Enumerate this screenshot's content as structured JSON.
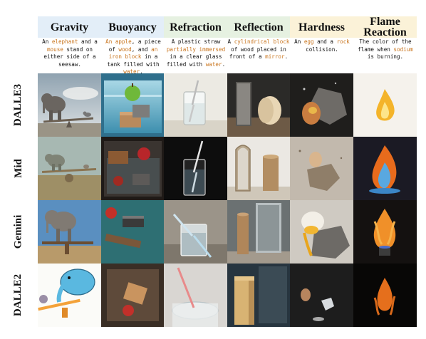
{
  "columns": [
    {
      "title": "Gravity",
      "bg": "#e3eef8",
      "caption": [
        [
          "An ",
          ""
        ],
        [
          "elephant",
          "h"
        ],
        [
          " and a ",
          ""
        ],
        [
          "mouse",
          "h"
        ],
        [
          " stand on either side of a seesaw.",
          ""
        ]
      ]
    },
    {
      "title": "Buoyancy",
      "bg": "#e3eef8",
      "caption": [
        [
          "An apple",
          "h"
        ],
        [
          ", a piece of ",
          ""
        ],
        [
          "wood",
          "h"
        ],
        [
          ", and ",
          ""
        ],
        [
          "an iron block",
          "h"
        ],
        [
          " in a tank filled with ",
          ""
        ],
        [
          "water",
          "h"
        ],
        [
          ".",
          ""
        ]
      ]
    },
    {
      "title": "Refraction",
      "bg": "#e6f1e1",
      "caption": [
        [
          "A plastic straw ",
          ""
        ],
        [
          "partially immersed",
          "h"
        ],
        [
          " in a clear glass filled with ",
          ""
        ],
        [
          "water",
          "h"
        ],
        [
          ".",
          ""
        ]
      ]
    },
    {
      "title": "Reflection",
      "bg": "#e6f1e1",
      "caption": [
        [
          "A ",
          ""
        ],
        [
          "cylindrical block",
          "h"
        ],
        [
          " of wood placed in front of a ",
          ""
        ],
        [
          "mirror",
          "h"
        ],
        [
          ".",
          ""
        ]
      ]
    },
    {
      "title": "Hardness",
      "bg": "#fbf2d8",
      "caption": [
        [
          "An ",
          ""
        ],
        [
          "egg",
          "h"
        ],
        [
          " and a ",
          ""
        ],
        [
          "rock",
          "h"
        ],
        [
          " collision.",
          ""
        ]
      ]
    },
    {
      "title": "Flame Reaction",
      "bg": "#fbf2d8",
      "caption": [
        [
          "The color of the flame when ",
          ""
        ],
        [
          "sodium",
          "h"
        ],
        [
          " is burning.",
          ""
        ]
      ]
    }
  ],
  "rows": [
    {
      "label": "DALLE3"
    },
    {
      "label": "Mid"
    },
    {
      "label": "Gemini"
    },
    {
      "label": "DALLE2"
    }
  ],
  "colors": {
    "highlight": "#c9741c"
  }
}
